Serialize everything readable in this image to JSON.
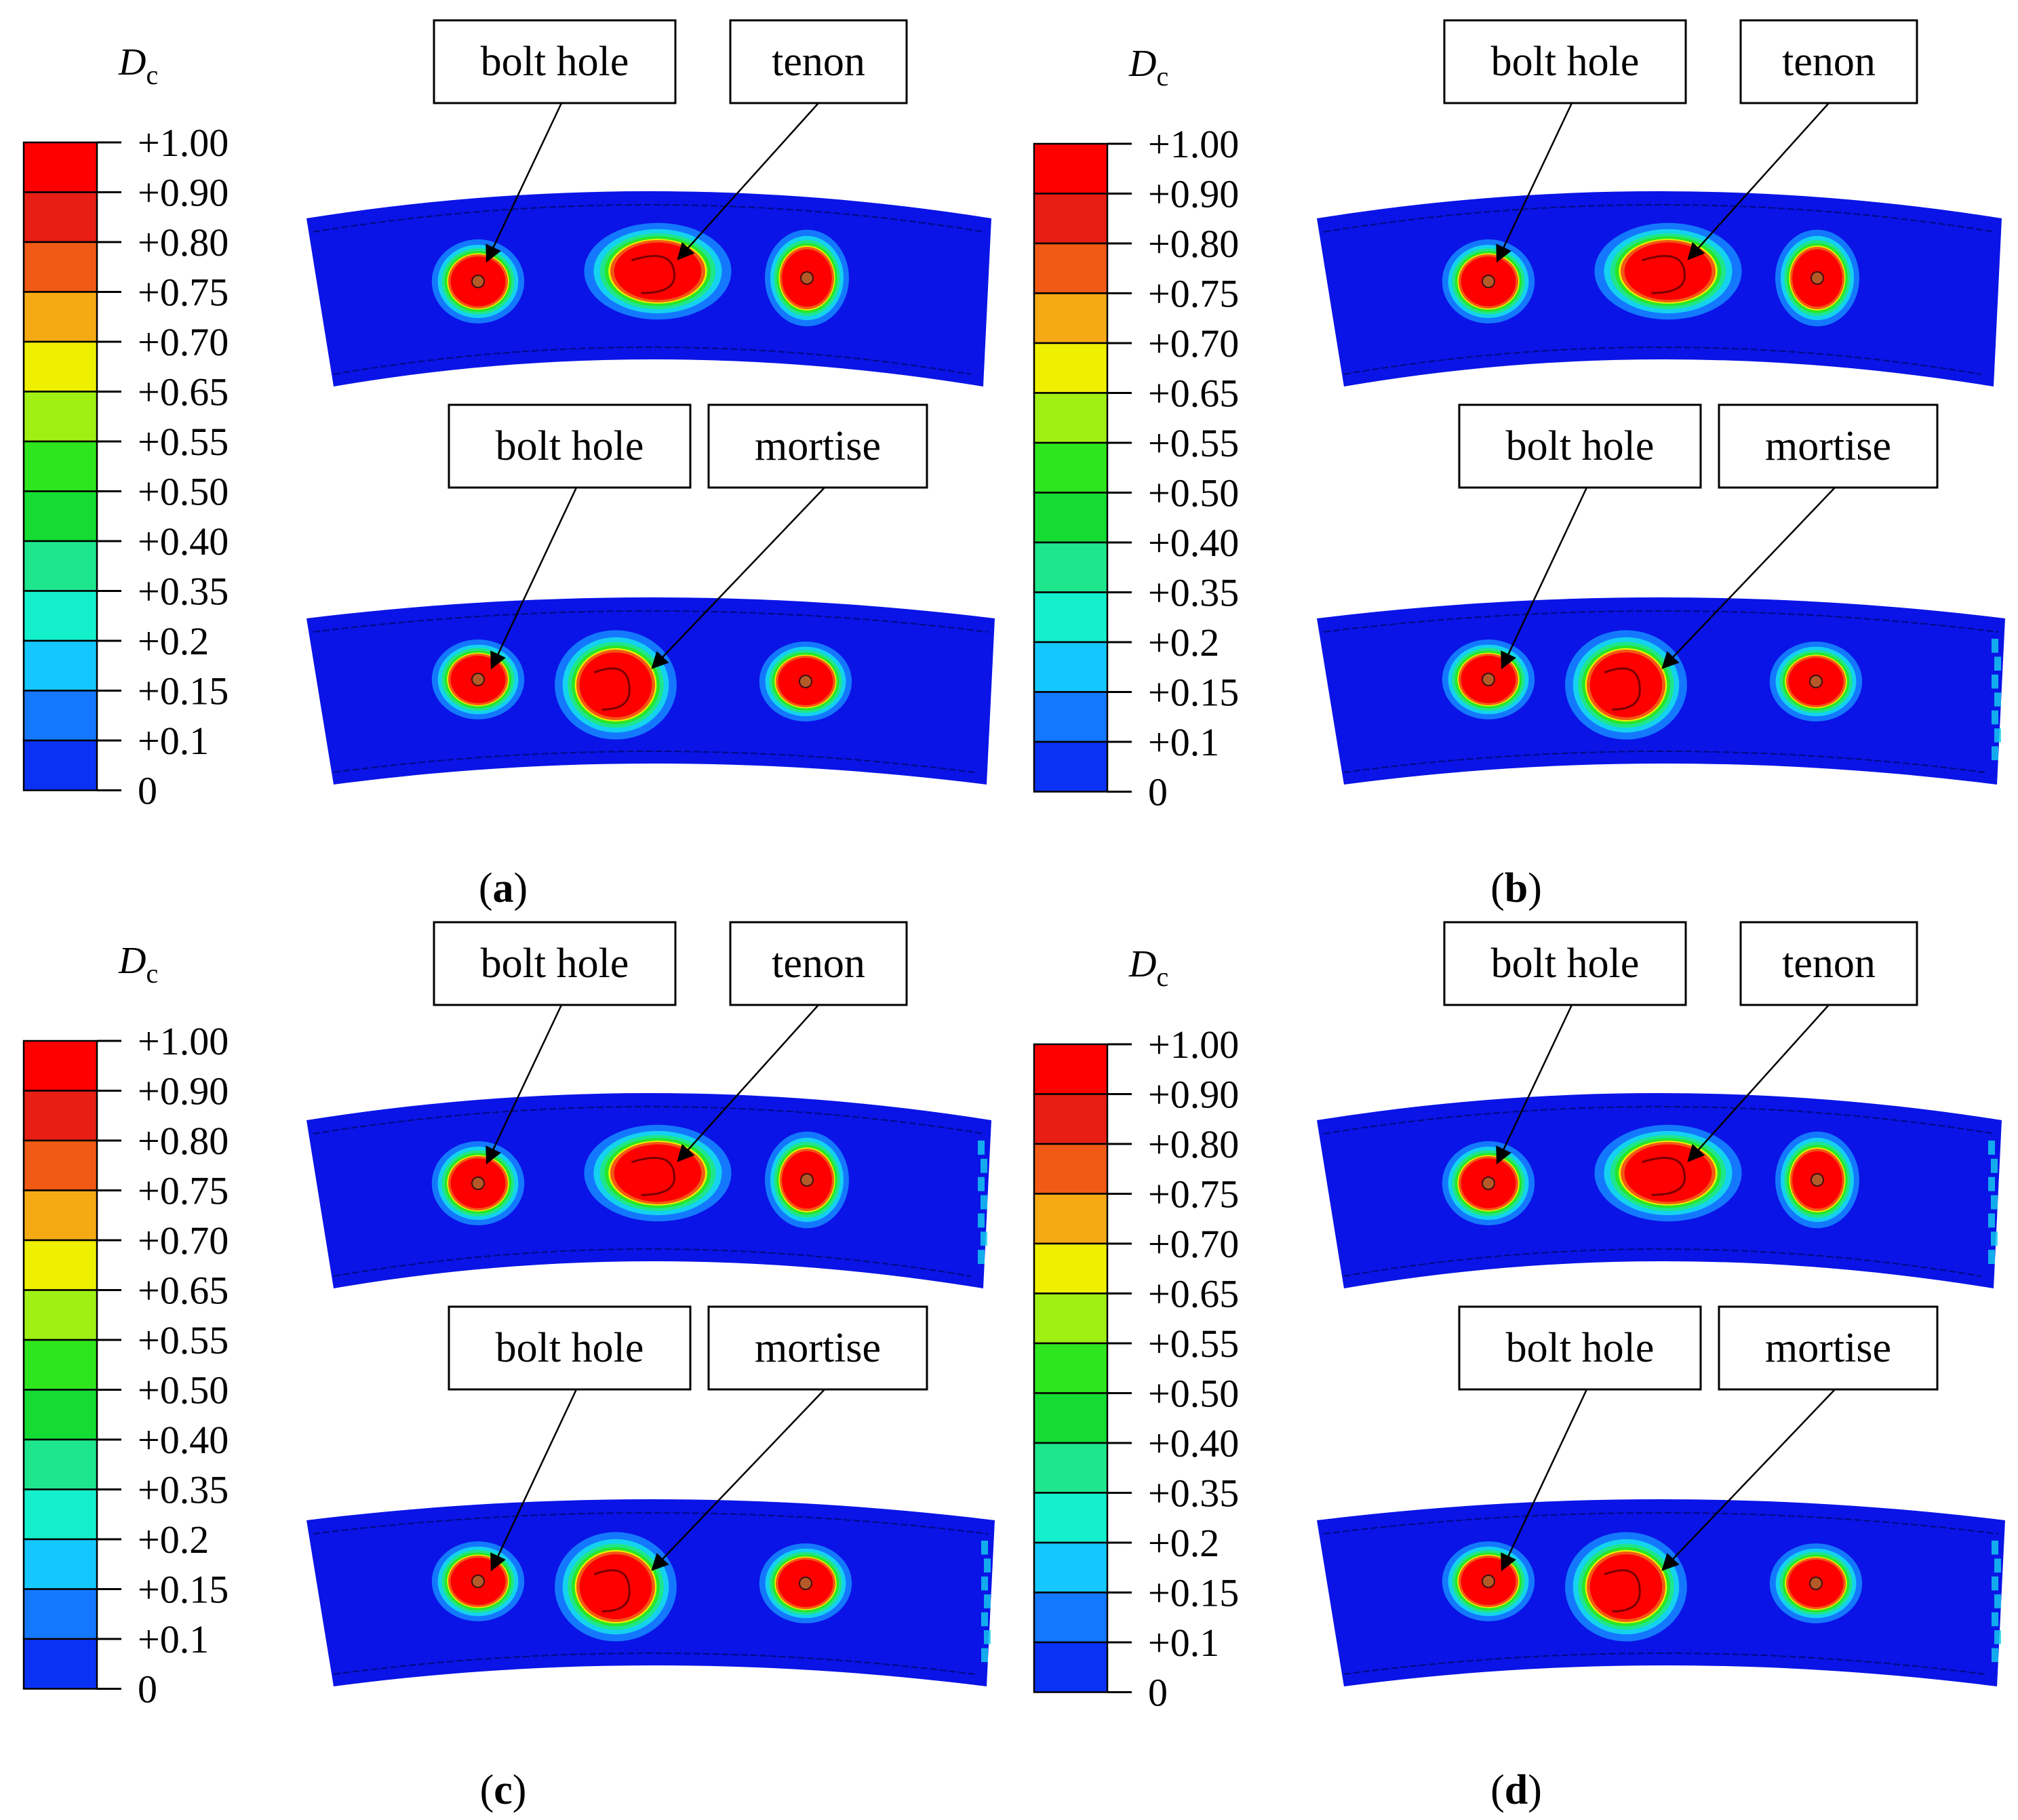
{
  "legend": {
    "symbol": "D",
    "subscript": "c",
    "ticks": [
      "+1.00",
      "+0.90",
      "+0.80",
      "+0.75",
      "+0.70",
      "+0.65",
      "+0.55",
      "+0.50",
      "+0.40",
      "+0.35",
      "+0.2",
      "+0.15",
      "+0.1",
      "0"
    ],
    "colors": [
      "#ff0000",
      "#e81e14",
      "#f05a14",
      "#f5aa14",
      "#eef000",
      "#a0f014",
      "#2ee61e",
      "#14dc32",
      "#1ee68c",
      "#14f0cc",
      "#14c8ff",
      "#1478ff",
      "#0a32f5"
    ]
  },
  "callouts": {
    "bolt_hole": "bolt hole",
    "tenon": "tenon",
    "mortise": "mortise"
  },
  "panels": [
    {
      "id": "a",
      "caption_open": "(",
      "caption_letter": "a",
      "caption_close": ")"
    },
    {
      "id": "b",
      "caption_open": "(",
      "caption_letter": "b",
      "caption_close": ")"
    },
    {
      "id": "c",
      "caption_open": "(",
      "caption_letter": "c",
      "caption_close": ")"
    },
    {
      "id": "d",
      "caption_open": "(",
      "caption_letter": "d",
      "caption_close": ")"
    }
  ],
  "colors": {
    "background_blue": "#0a14e6",
    "damage_red": "#ff0000",
    "contour_green": "#28e628",
    "contour_cyan": "#14d2f0"
  }
}
